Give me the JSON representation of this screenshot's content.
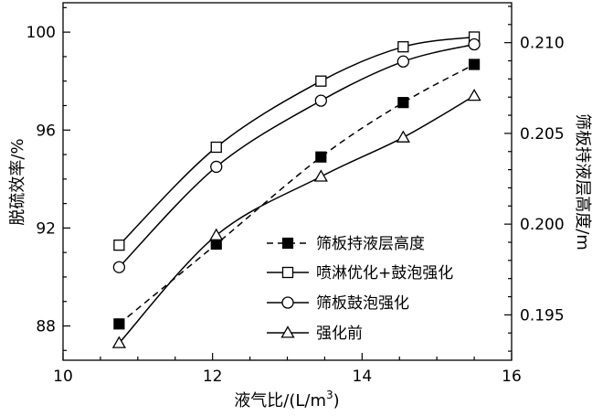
{
  "chart_data": {
    "type": "line",
    "xlabel_parts": [
      "液气比/(L/m",
      "3",
      ")"
    ],
    "ylabel_left": "脱硫效率/%",
    "ylabel_right": "筛板持液层高度/m",
    "xlim": [
      10,
      16
    ],
    "ylim_left": [
      86.6,
      101.2
    ],
    "ylim_right": [
      0.1925,
      0.2122
    ],
    "xticks": [
      10,
      12,
      14,
      16
    ],
    "yticks_left": [
      88,
      92,
      96,
      100
    ],
    "yticks_right": [
      "0.195",
      "0.200",
      "0.205",
      "0.210"
    ],
    "legend_position": "center-right",
    "series": [
      {
        "name": "筛板持液层高度",
        "axis": "right",
        "marker": "filled-square",
        "line": "dashed",
        "x": [
          10.75,
          12.05,
          13.45,
          14.55,
          15.5
        ],
        "y": [
          0.1945,
          0.1989,
          0.2037,
          0.2067,
          0.2088
        ]
      },
      {
        "name": "喷淋优化+鼓泡强化",
        "axis": "left",
        "marker": "open-square",
        "line": "solid",
        "x": [
          10.75,
          12.05,
          13.45,
          14.55,
          15.5
        ],
        "y": [
          91.3,
          95.3,
          98.0,
          99.4,
          99.8
        ]
      },
      {
        "name": "筛板鼓泡强化",
        "axis": "left",
        "marker": "open-circle",
        "line": "solid",
        "x": [
          10.75,
          12.05,
          13.45,
          14.55,
          15.5
        ],
        "y": [
          90.4,
          94.5,
          97.2,
          98.8,
          99.5
        ]
      },
      {
        "name": "强化前",
        "axis": "left",
        "marker": "open-triangle",
        "line": "solid",
        "x": [
          10.75,
          12.05,
          13.45,
          14.55,
          15.5
        ],
        "y": [
          87.3,
          91.7,
          94.1,
          95.7,
          97.4
        ]
      }
    ]
  }
}
